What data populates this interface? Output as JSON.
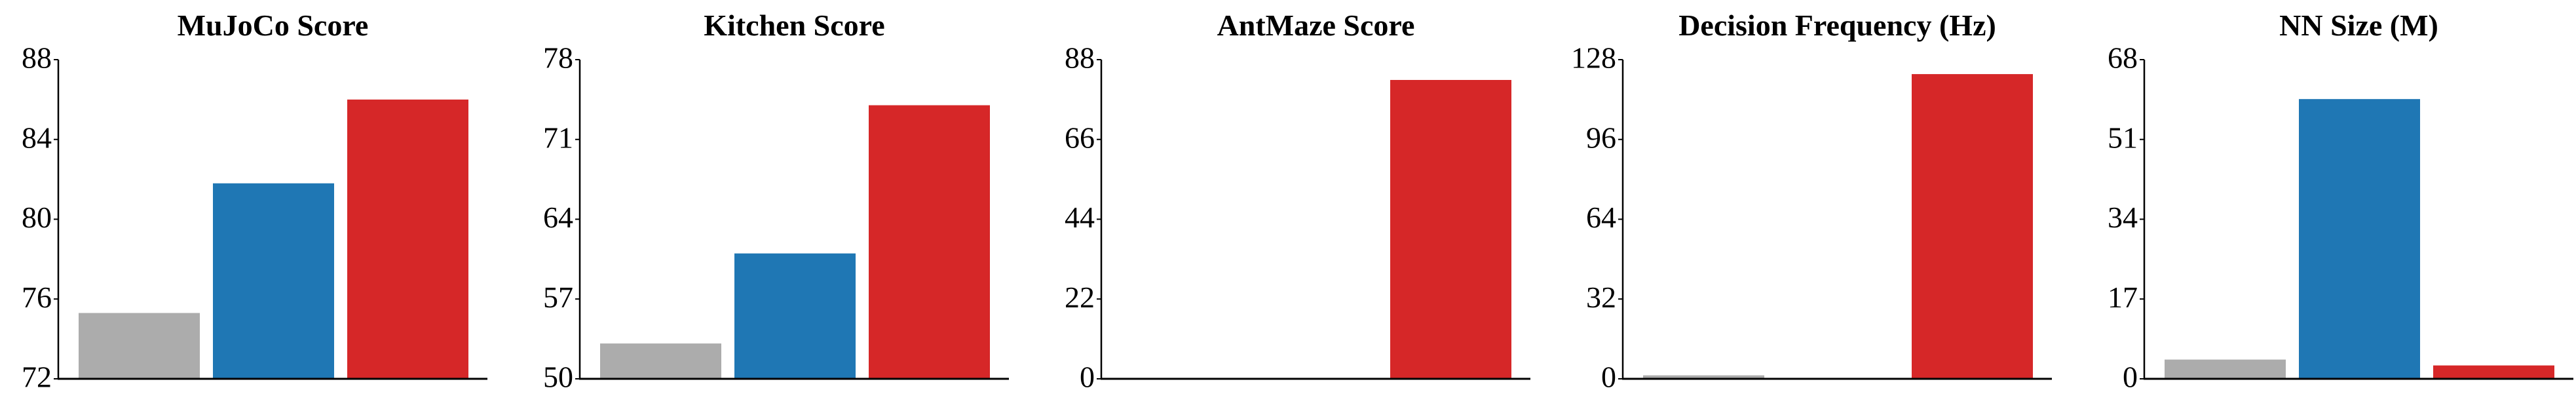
{
  "colors": [
    "#acacac",
    "#1f77b4",
    "#d62728"
  ],
  "chart_data": [
    {
      "type": "bar",
      "title": "MuJoCo Score",
      "ylim": [
        72,
        88
      ],
      "yticks": [
        "72",
        "76",
        "80",
        "84",
        "88"
      ],
      "values": [
        75.3,
        81.8,
        86.0
      ],
      "grid": false
    },
    {
      "type": "bar",
      "title": "Kitchen Score",
      "ylim": [
        50,
        78
      ],
      "yticks": [
        "50",
        "57",
        "64",
        "71",
        "78"
      ],
      "values": [
        53.1,
        61.0,
        74.0
      ],
      "grid": false
    },
    {
      "type": "bar",
      "title": "AntMaze Score",
      "ylim": [
        0,
        88
      ],
      "yticks": [
        "0",
        "22",
        "44",
        "66",
        "88"
      ],
      "values": [
        0,
        0,
        82.4
      ],
      "grid": false
    },
    {
      "type": "bar",
      "title": "Decision Frequency (Hz)",
      "ylim": [
        0,
        128
      ],
      "yticks": [
        "0",
        "32",
        "64",
        "96",
        "128"
      ],
      "values": [
        1.4,
        0.3,
        122.2
      ],
      "grid": false
    },
    {
      "type": "bar",
      "title": "NN Size (M)",
      "ylim": [
        0,
        68
      ],
      "yticks": [
        "0",
        "17",
        "34",
        "51",
        "68"
      ],
      "values": [
        4.1,
        59.6,
        2.85
      ],
      "grid": false
    }
  ]
}
